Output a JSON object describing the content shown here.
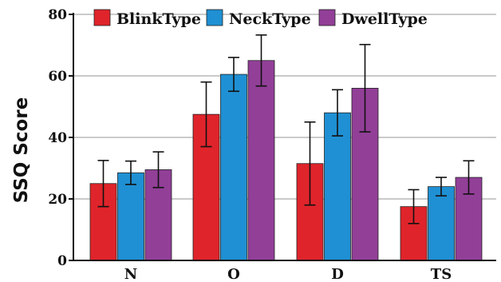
{
  "chart_data": {
    "type": "bar",
    "ylabel": "SSQ Score",
    "xlabel": "",
    "title": "",
    "categories": [
      "N",
      "O",
      "D",
      "TS"
    ],
    "ylim": [
      0,
      80
    ],
    "yticks": [
      0,
      20,
      40,
      60,
      80
    ],
    "grid": "horizontal",
    "legend_position": "top",
    "series": [
      {
        "name": "BlinkType",
        "color": "#e0242b",
        "values": [
          25,
          47.5,
          31.5,
          17.5
        ],
        "errors": [
          7.5,
          10.5,
          13.5,
          5.5
        ]
      },
      {
        "name": "NeckType",
        "color": "#1f90d3",
        "values": [
          28.5,
          60.5,
          48,
          24
        ],
        "errors": [
          3.8,
          5.5,
          7.5,
          3
        ]
      },
      {
        "name": "DwellType",
        "color": "#923f98",
        "values": [
          29.5,
          65,
          56,
          27
        ],
        "errors": [
          5.8,
          8.3,
          14.2,
          5.4
        ]
      }
    ]
  }
}
